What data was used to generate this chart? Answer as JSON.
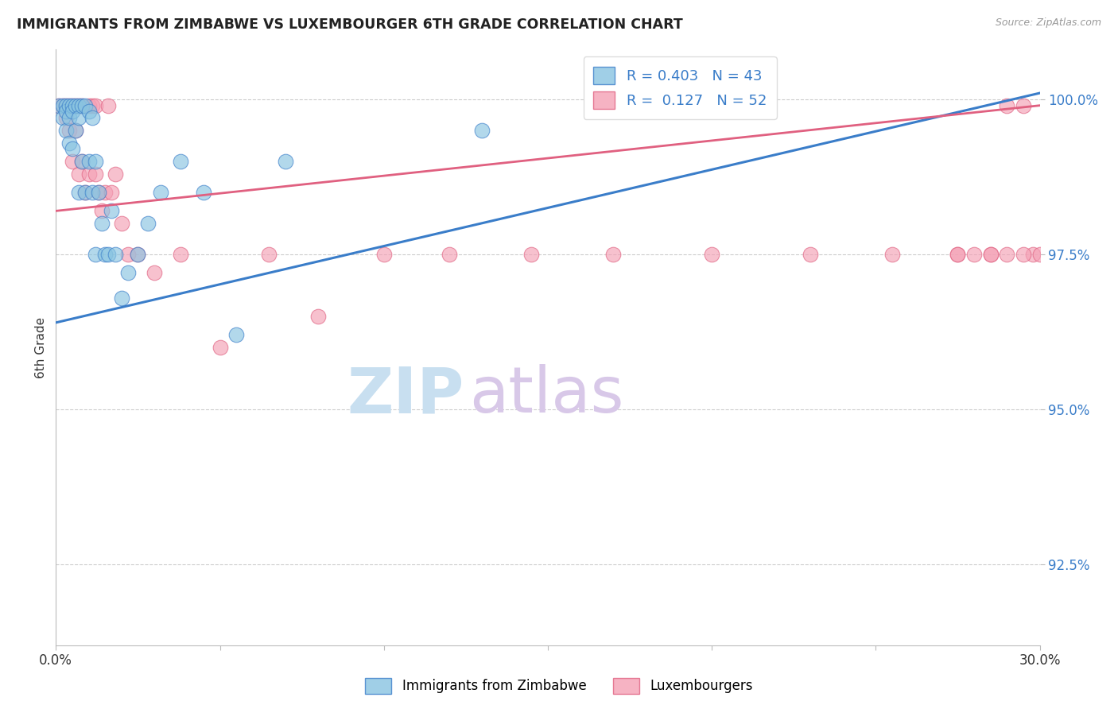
{
  "title": "IMMIGRANTS FROM ZIMBABWE VS LUXEMBOURGER 6TH GRADE CORRELATION CHART",
  "source": "Source: ZipAtlas.com",
  "ylabel": "6th Grade",
  "yticks": [
    "100.0%",
    "97.5%",
    "95.0%",
    "92.5%"
  ],
  "ytick_vals": [
    1.0,
    0.975,
    0.95,
    0.925
  ],
  "xlim": [
    0.0,
    0.3
  ],
  "ylim": [
    0.912,
    1.008
  ],
  "legend_label1": "Immigrants from Zimbabwe",
  "legend_label2": "Luxembourgers",
  "r1": 0.403,
  "n1": 43,
  "r2": 0.127,
  "n2": 52,
  "color_blue": "#89c4e1",
  "color_pink": "#f4a0b5",
  "color_blue_line": "#3a7dc9",
  "color_pink_line": "#e06080",
  "color_blue_text": "#3a7dc9",
  "watermark_zip_color": "#c8dff0",
  "watermark_atlas_color": "#d8c8e8",
  "background_color": "#ffffff",
  "grid_color": "#cccccc",
  "blue_points_x": [
    0.001,
    0.002,
    0.002,
    0.003,
    0.003,
    0.003,
    0.004,
    0.004,
    0.004,
    0.005,
    0.005,
    0.005,
    0.006,
    0.006,
    0.007,
    0.007,
    0.007,
    0.008,
    0.008,
    0.009,
    0.009,
    0.01,
    0.01,
    0.011,
    0.011,
    0.012,
    0.012,
    0.013,
    0.014,
    0.015,
    0.016,
    0.017,
    0.018,
    0.02,
    0.022,
    0.025,
    0.028,
    0.032,
    0.038,
    0.045,
    0.055,
    0.07,
    0.13
  ],
  "blue_points_y": [
    0.999,
    0.999,
    0.997,
    0.999,
    0.998,
    0.995,
    0.999,
    0.997,
    0.993,
    0.999,
    0.998,
    0.992,
    0.999,
    0.995,
    0.999,
    0.997,
    0.985,
    0.999,
    0.99,
    0.999,
    0.985,
    0.998,
    0.99,
    0.997,
    0.985,
    0.99,
    0.975,
    0.985,
    0.98,
    0.975,
    0.975,
    0.982,
    0.975,
    0.968,
    0.972,
    0.975,
    0.98,
    0.985,
    0.99,
    0.985,
    0.962,
    0.99,
    0.995
  ],
  "pink_points_x": [
    0.001,
    0.002,
    0.003,
    0.003,
    0.004,
    0.004,
    0.005,
    0.005,
    0.006,
    0.006,
    0.007,
    0.007,
    0.008,
    0.008,
    0.009,
    0.01,
    0.01,
    0.011,
    0.012,
    0.012,
    0.013,
    0.014,
    0.015,
    0.016,
    0.017,
    0.018,
    0.02,
    0.022,
    0.025,
    0.03,
    0.038,
    0.05,
    0.065,
    0.08,
    0.1,
    0.12,
    0.145,
    0.17,
    0.2,
    0.23,
    0.255,
    0.275,
    0.285,
    0.29,
    0.295,
    0.298,
    0.3,
    0.295,
    0.29,
    0.285,
    0.28,
    0.275
  ],
  "pink_points_y": [
    0.999,
    0.999,
    0.999,
    0.997,
    0.999,
    0.995,
    0.999,
    0.99,
    0.999,
    0.995,
    0.999,
    0.988,
    0.999,
    0.99,
    0.985,
    0.999,
    0.988,
    0.999,
    0.999,
    0.988,
    0.985,
    0.982,
    0.985,
    0.999,
    0.985,
    0.988,
    0.98,
    0.975,
    0.975,
    0.972,
    0.975,
    0.96,
    0.975,
    0.965,
    0.975,
    0.975,
    0.975,
    0.975,
    0.975,
    0.975,
    0.975,
    0.975,
    0.975,
    0.999,
    0.999,
    0.975,
    0.975,
    0.975,
    0.975,
    0.975,
    0.975,
    0.975
  ],
  "blue_line_x0": 0.0,
  "blue_line_x1": 0.3,
  "blue_line_y0": 0.964,
  "blue_line_y1": 1.001,
  "pink_line_x0": 0.0,
  "pink_line_x1": 0.3,
  "pink_line_y0": 0.982,
  "pink_line_y1": 0.999
}
